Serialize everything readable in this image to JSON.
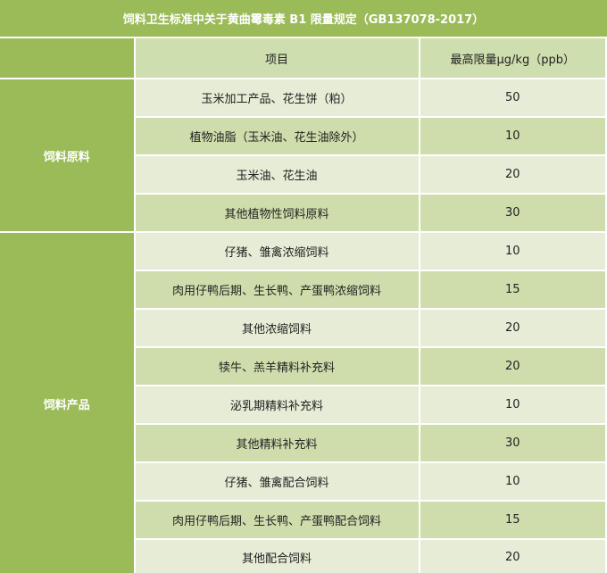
{
  "title": "饲料卫生标准中关于黄曲霉毒素 B1 限量规定（GB137078-2017）",
  "header": {
    "category": "",
    "item": "项目",
    "limit": "最高限量μg/kg（ppb）"
  },
  "groups": [
    {
      "category": "饲料原料",
      "rows": [
        {
          "item": "玉米加工产品、花生饼（粕）",
          "limit": "50"
        },
        {
          "item": "植物油脂（玉米油、花生油除外）",
          "limit": "10"
        },
        {
          "item": "玉米油、花生油",
          "limit": "20"
        },
        {
          "item": "其他植物性饲料原料",
          "limit": "30"
        }
      ]
    },
    {
      "category": "饲料产品",
      "rows": [
        {
          "item": "仔猪、雏禽浓缩饲料",
          "limit": "10"
        },
        {
          "item": "肉用仔鸭后期、生长鸭、产蛋鸭浓缩饲料",
          "limit": "15"
        },
        {
          "item": "其他浓缩饲料",
          "limit": "20"
        },
        {
          "item": "犊牛、羔羊精料补充料",
          "limit": "20"
        },
        {
          "item": "泌乳期精料补充料",
          "limit": "10"
        },
        {
          "item": "其他精料补充料",
          "limit": "30"
        },
        {
          "item": "仔猪、雏禽配合饲料",
          "limit": "10"
        },
        {
          "item": "肉用仔鸭后期、生长鸭、产蛋鸭配合饲料",
          "limit": "15"
        },
        {
          "item": "其他配合饲料",
          "limit": "20"
        }
      ]
    }
  ]
}
